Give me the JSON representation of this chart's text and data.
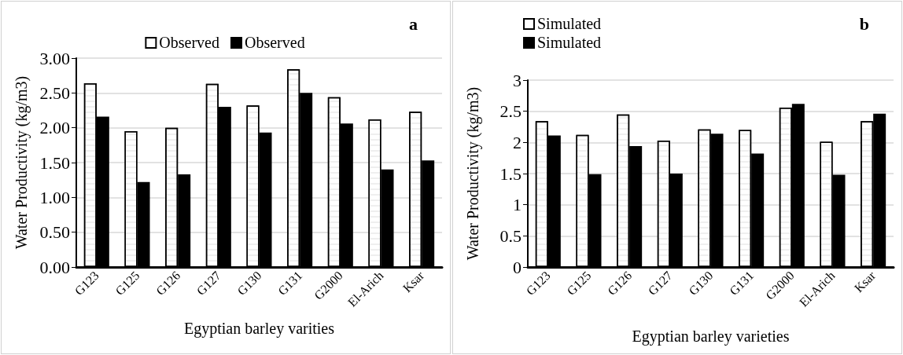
{
  "chart_data": [
    {
      "type": "bar",
      "title": "a",
      "xlabel": "Egyptian barley varities",
      "ylabel": "Water Productivity (kg/m3)",
      "categories": [
        "G123",
        "G125",
        "G126",
        "G127",
        "G130",
        "G131",
        "G2000",
        "El-Arich",
        "Ksar"
      ],
      "series": [
        {
          "name": "Observed",
          "color": "#ffffff",
          "values": [
            2.64,
            1.95,
            2.0,
            2.63,
            2.32,
            2.84,
            2.44,
            2.12,
            2.23
          ]
        },
        {
          "name": "Observed",
          "color": "#000000",
          "values": [
            2.16,
            1.22,
            1.33,
            2.3,
            1.93,
            2.5,
            2.06,
            1.4,
            1.53
          ]
        }
      ],
      "ylim": [
        0,
        3
      ],
      "yticks": [
        {
          "value": 0,
          "label": "0.00"
        },
        {
          "value": 0.5,
          "label": "0.50"
        },
        {
          "value": 1,
          "label": "1.00"
        },
        {
          "value": 1.5,
          "label": "1.50"
        },
        {
          "value": 2,
          "label": "2.00"
        },
        {
          "value": 2.5,
          "label": "2.50"
        },
        {
          "value": 3,
          "label": "3.00"
        }
      ],
      "grid": "y",
      "legend": "top"
    },
    {
      "type": "bar",
      "title": "b",
      "xlabel": "Egyptian barley varieties",
      "ylabel": "Water Productivity (kg/m3)",
      "categories": [
        "G123",
        "G125",
        "G126",
        "G127",
        "G130",
        "G131",
        "G2000",
        "El-Arich",
        "Ksar"
      ],
      "series": [
        {
          "name": "Simulated",
          "color": "#ffffff",
          "values": [
            2.34,
            2.12,
            2.45,
            2.03,
            2.21,
            2.2,
            2.56,
            2.01,
            2.34
          ]
        },
        {
          "name": "Simulated",
          "color": "#000000",
          "values": [
            2.11,
            1.49,
            1.94,
            1.5,
            2.14,
            1.82,
            2.62,
            1.48,
            2.46
          ]
        }
      ],
      "ylim": [
        0,
        3
      ],
      "yticks": [
        0,
        0.5,
        1,
        1.5,
        2,
        2.5,
        3
      ],
      "grid": "y",
      "legend": "top left"
    }
  ]
}
